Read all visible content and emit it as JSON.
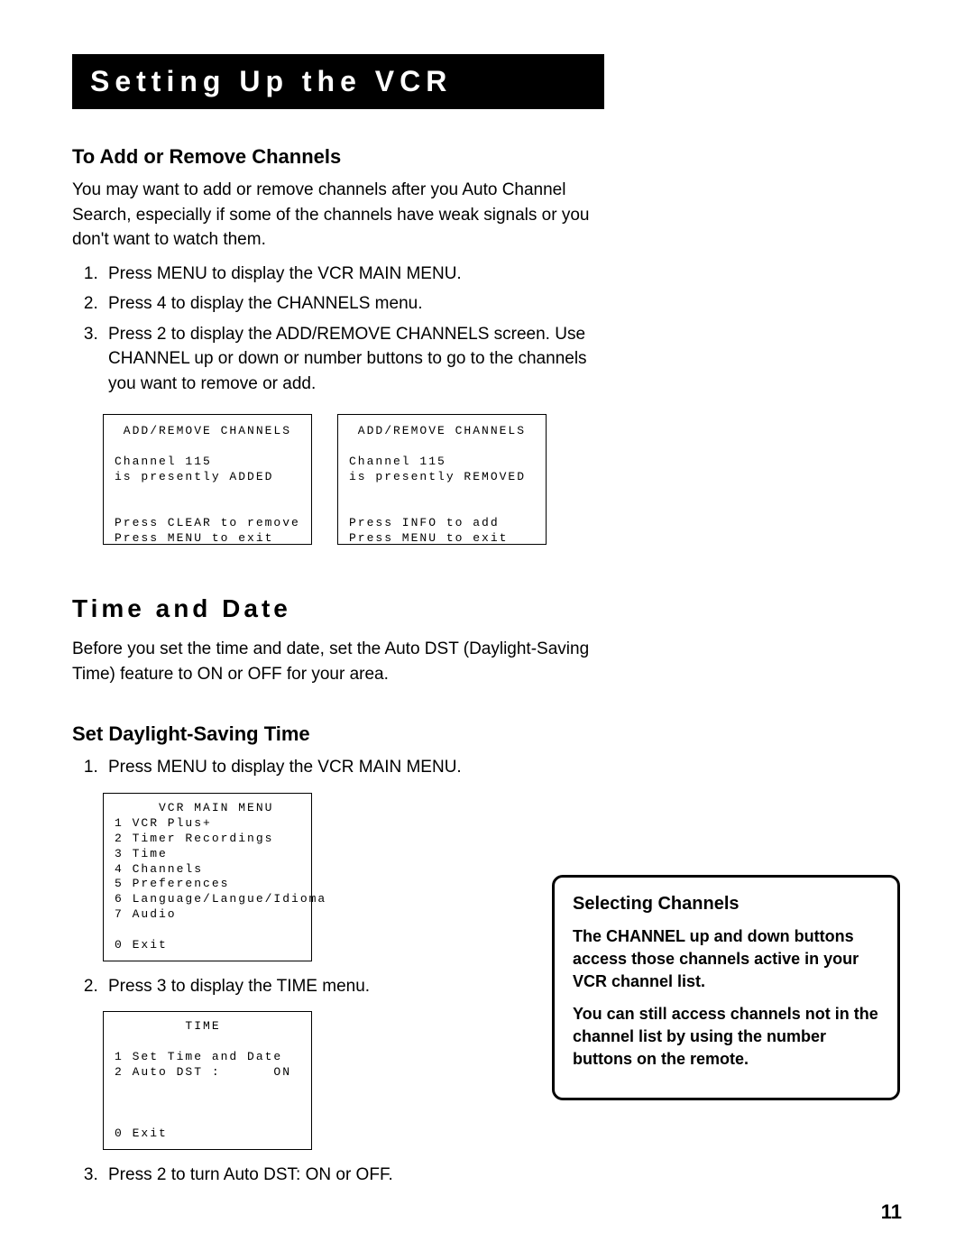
{
  "header": {
    "title": "Setting Up the VCR"
  },
  "section1": {
    "heading": "To Add or Remove Channels",
    "intro": "You may want to add or remove channels after you Auto Channel Search, especially if some of the channels have weak signals or you don't want to watch them.",
    "steps": [
      "Press MENU to display the VCR MAIN MENU.",
      "Press 4 to display the CHANNELS menu.",
      "Press 2 to display the ADD/REMOVE CHANNELS screen. Use CHANNEL up or down or number buttons to go to the channels you want to remove or add."
    ],
    "screen_left": " ADD/REMOVE CHANNELS\n\nChannel 115\nis presently ADDED\n\n\nPress CLEAR to remove\nPress MENU to exit",
    "screen_right": " ADD/REMOVE CHANNELS\n\nChannel 115\nis presently REMOVED\n\n\nPress INFO to add\nPress MENU to exit"
  },
  "section2": {
    "heading": "Time and Date",
    "intro": "Before you set the time and date, set the Auto DST (Daylight-Saving Time) feature to ON or OFF for your area."
  },
  "section3": {
    "heading": "Set Daylight-Saving Time",
    "step1": "Press MENU to display the VCR MAIN MENU.",
    "screen_menu": "     VCR MAIN MENU\n1 VCR Plus+\n2 Timer Recordings\n3 Time\n4 Channels\n5 Preferences\n6 Language/Langue/Idioma\n7 Audio\n\n0 Exit",
    "step2": "Press 3 to display the TIME menu.",
    "screen_time": "        TIME\n\n1 Set Time and Date\n2 Auto DST :      ON\n\n\n\n0 Exit",
    "step3": "Press 2 to turn Auto DST: ON or OFF."
  },
  "sidebar": {
    "title": "Selecting Channels",
    "p1": "The CHANNEL up and down buttons access those channels active in your VCR channel list.",
    "p2": "You can still access channels not in the channel list by using the number buttons on the remote."
  },
  "page_number": "11",
  "style": {
    "background": "#ffffff",
    "title_bg": "#000000",
    "title_fg": "#ffffff",
    "text_color": "#000000",
    "border_color": "#000000",
    "body_font": "Arial",
    "mono_font": "Courier New",
    "title_fontsize": 32,
    "h1_fontsize": 28,
    "h2_fontsize": 22,
    "body_fontsize": 19,
    "screen_fontsize": 13,
    "title_letterspacing": 6,
    "h1_letterspacing": 4,
    "screen_letterspacing": 2,
    "screen_border_width": 1,
    "sidebar_border_width": 3,
    "sidebar_border_radius": 12
  }
}
